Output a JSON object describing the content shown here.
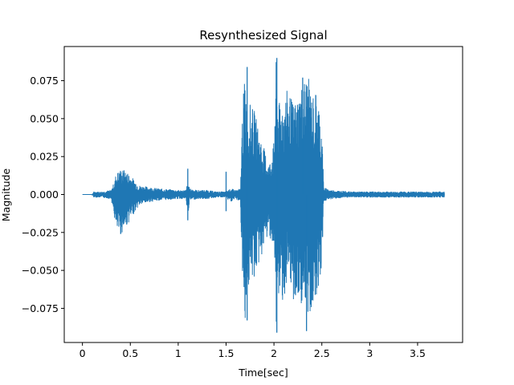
{
  "chart_data": {
    "type": "line",
    "title": "Resynthesized Signal",
    "xlabel": "Time[sec]",
    "ylabel": "Magnitude",
    "xlim": [
      -0.19,
      3.97
    ],
    "ylim": [
      -0.0975,
      0.0975
    ],
    "x_ticks": [
      0,
      0.5,
      1,
      1.5,
      2,
      2.5,
      3,
      3.5
    ],
    "x_tick_labels": [
      "0",
      "0.5",
      "1",
      "1.5",
      "2",
      "2.5",
      "3",
      "3.5"
    ],
    "y_ticks": [
      -0.075,
      -0.05,
      -0.025,
      0.0,
      0.025,
      0.05,
      0.075
    ],
    "y_tick_labels": [
      "−0.075",
      "−0.050",
      "−0.025",
      "0.000",
      "0.025",
      "0.050",
      "0.075"
    ],
    "grid": false,
    "line_color": "#1f77b4",
    "envelope": {
      "x": [
        0.0,
        0.1,
        0.12,
        0.2,
        0.3,
        0.34,
        0.35,
        0.4,
        0.45,
        0.5,
        0.55,
        0.6,
        0.7,
        0.8,
        1.0,
        1.08,
        1.1,
        1.12,
        1.2,
        1.3,
        1.4,
        1.5,
        1.52,
        1.55,
        1.6,
        1.65,
        1.67,
        1.7,
        1.72,
        1.75,
        1.8,
        1.85,
        1.9,
        1.95,
        2.0,
        2.02,
        2.05,
        2.1,
        2.15,
        2.2,
        2.25,
        2.3,
        2.35,
        2.4,
        2.45,
        2.5,
        2.52,
        2.55,
        2.6,
        2.8,
        3.0,
        3.5,
        3.78
      ],
      "upper": [
        0.0,
        0.0,
        0.002,
        0.002,
        0.003,
        0.01,
        0.014,
        0.017,
        0.016,
        0.013,
        0.009,
        0.006,
        0.005,
        0.004,
        0.003,
        0.003,
        0.008,
        0.004,
        0.003,
        0.003,
        0.002,
        0.002,
        0.003,
        0.004,
        0.003,
        0.004,
        0.055,
        0.085,
        0.055,
        0.06,
        0.055,
        0.04,
        0.03,
        0.02,
        0.035,
        0.09,
        0.06,
        0.065,
        0.07,
        0.06,
        0.065,
        0.075,
        0.08,
        0.065,
        0.07,
        0.045,
        0.005,
        0.004,
        0.003,
        0.002,
        0.002,
        0.002,
        0.002
      ],
      "lower": [
        0.0,
        0.0,
        -0.002,
        -0.002,
        -0.003,
        -0.018,
        -0.024,
        -0.027,
        -0.022,
        -0.017,
        -0.011,
        -0.007,
        -0.005,
        -0.004,
        -0.003,
        -0.003,
        -0.015,
        -0.004,
        -0.003,
        -0.003,
        -0.002,
        -0.002,
        -0.004,
        -0.005,
        -0.003,
        -0.005,
        -0.06,
        -0.083,
        -0.065,
        -0.06,
        -0.055,
        -0.045,
        -0.035,
        -0.025,
        -0.04,
        -0.09,
        -0.07,
        -0.07,
        -0.065,
        -0.07,
        -0.075,
        -0.072,
        -0.085,
        -0.075,
        -0.065,
        -0.05,
        -0.005,
        -0.004,
        -0.003,
        -0.002,
        -0.002,
        -0.002,
        -0.002
      ]
    },
    "spikes": [
      {
        "x": 1.1,
        "value": 0.017
      },
      {
        "x": 1.1,
        "value": -0.017
      },
      {
        "x": 1.5,
        "value": 0.015
      },
      {
        "x": 1.5,
        "value": -0.011
      },
      {
        "x": 1.72,
        "value": 0.084
      },
      {
        "x": 1.72,
        "value": -0.083
      },
      {
        "x": 2.03,
        "value": 0.09
      },
      {
        "x": 2.03,
        "value": -0.091
      },
      {
        "x": 2.3,
        "value": 0.077
      },
      {
        "x": 2.34,
        "value": -0.09
      }
    ]
  }
}
